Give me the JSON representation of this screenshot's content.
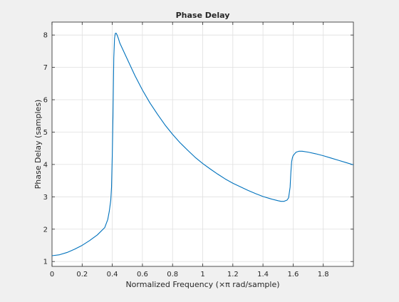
{
  "chart_data": {
    "type": "line",
    "title": "Phase Delay",
    "xlabel": "Normalized Frequency (×π rad/sample)",
    "ylabel": "Phase Delay (samples)",
    "xlim": [
      0,
      2
    ],
    "ylim": [
      0.85,
      8.4
    ],
    "xticks": [
      0,
      0.2,
      0.4,
      0.6,
      0.8,
      1,
      1.2,
      1.4,
      1.6,
      1.8
    ],
    "xtick_labels": [
      "0",
      "0.2",
      "0.4",
      "0.6",
      "0.8",
      "1",
      "1.2",
      "1.4",
      "1.6",
      "1.8"
    ],
    "yticks": [
      1,
      2,
      3,
      4,
      5,
      6,
      7,
      8
    ],
    "ytick_labels": [
      "1",
      "2",
      "3",
      "4",
      "5",
      "6",
      "7",
      "8"
    ],
    "grid": true,
    "line_color": "#0072bd",
    "series": [
      {
        "x": [
          0,
          0.05,
          0.1,
          0.15,
          0.2,
          0.25,
          0.3,
          0.35,
          0.37,
          0.38,
          0.39,
          0.395,
          0.4,
          0.405,
          0.41,
          0.415,
          0.42,
          0.425,
          0.43,
          0.44,
          0.45,
          0.5,
          0.55,
          0.6,
          0.65,
          0.7,
          0.75,
          0.8,
          0.85,
          0.9,
          0.95,
          1.0,
          1.05,
          1.1,
          1.15,
          1.2,
          1.25,
          1.3,
          1.35,
          1.4,
          1.45,
          1.5,
          1.52,
          1.54,
          1.56,
          1.57,
          1.58,
          1.585,
          1.59,
          1.595,
          1.6,
          1.61,
          1.62,
          1.64,
          1.66,
          1.7,
          1.75,
          1.8,
          1.85,
          1.9,
          1.95,
          2.0
        ],
        "y": [
          1.18,
          1.21,
          1.28,
          1.38,
          1.5,
          1.65,
          1.82,
          2.05,
          2.3,
          2.55,
          2.9,
          3.3,
          4.3,
          5.6,
          7.3,
          7.9,
          8.05,
          8.06,
          8.02,
          7.9,
          7.75,
          7.25,
          6.75,
          6.3,
          5.9,
          5.55,
          5.22,
          4.93,
          4.67,
          4.44,
          4.22,
          4.03,
          3.86,
          3.7,
          3.55,
          3.42,
          3.31,
          3.2,
          3.1,
          3.01,
          2.94,
          2.88,
          2.86,
          2.86,
          2.9,
          2.97,
          3.3,
          3.75,
          4.08,
          4.2,
          4.27,
          4.33,
          4.38,
          4.41,
          4.41,
          4.38,
          4.33,
          4.27,
          4.2,
          4.13,
          4.06,
          3.99
        ]
      }
    ]
  }
}
